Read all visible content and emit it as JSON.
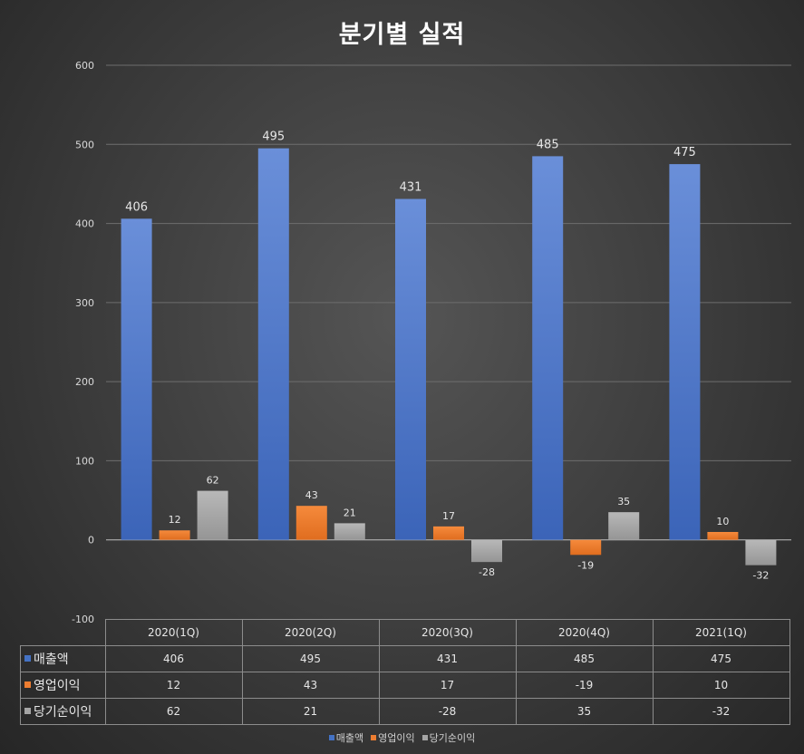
{
  "chart_data": {
    "type": "bar",
    "title": "분기별 실적",
    "categories": [
      "2020(1Q)",
      "2020(2Q)",
      "2020(3Q)",
      "2020(4Q)",
      "2021(1Q)"
    ],
    "series": [
      {
        "name": "매출액",
        "values": [
          406,
          495,
          431,
          485,
          475
        ],
        "color": "#4472c4"
      },
      {
        "name": "영업이익",
        "values": [
          12,
          43,
          17,
          -19,
          10
        ],
        "color": "#ed7d31"
      },
      {
        "name": "당기순이익",
        "values": [
          62,
          21,
          -28,
          35,
          -32
        ],
        "color": "#a5a5a5"
      }
    ],
    "ylim": [
      -100,
      600
    ],
    "yticks": [
      600,
      500,
      400,
      300,
      200,
      100,
      0,
      -100
    ],
    "grid": true,
    "legend": "bottom",
    "data_table": true
  }
}
